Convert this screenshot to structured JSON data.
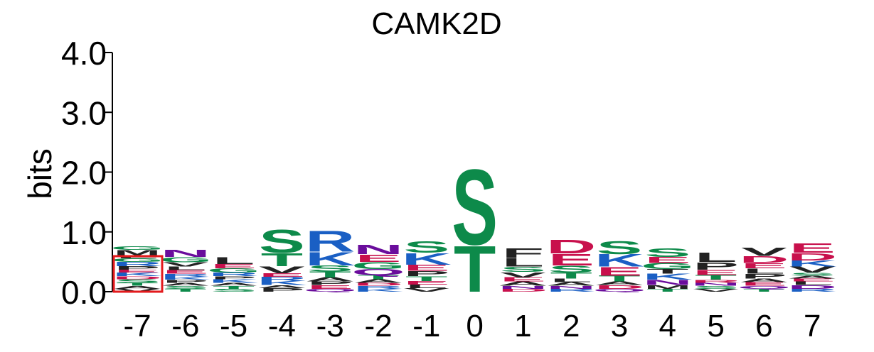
{
  "chart_data": {
    "type": "sequence_logo",
    "title": "CAMK2D",
    "ylabel": "bits",
    "ylim": [
      0,
      4
    ],
    "yticks": [
      "0.0",
      "1.0",
      "2.0",
      "3.0",
      "4.0"
    ],
    "ytick_values": [
      0,
      1,
      2,
      3,
      4
    ],
    "positions": [
      "-7",
      "-6",
      "-5",
      "-4",
      "-3",
      "-2",
      "-1",
      "0",
      "1",
      "2",
      "3",
      "4",
      "5",
      "6",
      "7"
    ],
    "highlighted_position": "-7",
    "highlight_color": "#e31a1c",
    "colors": {
      "green": "#0d8a4a",
      "blue": "#1a5fc4",
      "red": "#c8104c",
      "purple": "#6a0d9c",
      "black": "#222222"
    },
    "columns": [
      {
        "pos": "-7",
        "stack": [
          [
            "V",
            0.05,
            "black"
          ],
          [
            "A",
            0.05,
            "black"
          ],
          [
            "T",
            0.05,
            "green"
          ],
          [
            "S",
            0.06,
            "green"
          ],
          [
            "D",
            0.05,
            "red"
          ],
          [
            "K",
            0.06,
            "blue"
          ],
          [
            "E",
            0.05,
            "red"
          ],
          [
            "P",
            0.06,
            "black"
          ],
          [
            "R",
            0.07,
            "blue"
          ],
          [
            "G",
            0.06,
            "green"
          ],
          [
            "L",
            0.05,
            "black"
          ],
          [
            "M",
            0.09,
            "black"
          ],
          [
            "G",
            0.06,
            "green"
          ]
        ]
      },
      {
        "pos": "-6",
        "stack": [
          [
            "T",
            0.05,
            "green"
          ],
          [
            "S",
            0.05,
            "green"
          ],
          [
            "A",
            0.05,
            "black"
          ],
          [
            "P",
            0.05,
            "black"
          ],
          [
            "K",
            0.05,
            "blue"
          ],
          [
            "R",
            0.05,
            "blue"
          ],
          [
            "E",
            0.06,
            "red"
          ],
          [
            "L",
            0.06,
            "black"
          ],
          [
            "V",
            0.07,
            "black"
          ],
          [
            "G",
            0.09,
            "green"
          ],
          [
            "N",
            0.13,
            "purple"
          ]
        ]
      },
      {
        "pos": "-5",
        "stack": [
          [
            "S",
            0.05,
            "green"
          ],
          [
            "T",
            0.05,
            "green"
          ],
          [
            "A",
            0.05,
            "black"
          ],
          [
            "K",
            0.06,
            "blue"
          ],
          [
            "P",
            0.05,
            "black"
          ],
          [
            "R",
            0.06,
            "blue"
          ],
          [
            "G",
            0.07,
            "green"
          ],
          [
            "E",
            0.07,
            "red"
          ],
          [
            "L",
            0.12,
            "black"
          ]
        ]
      },
      {
        "pos": "-4",
        "stack": [
          [
            "P",
            0.06,
            "black"
          ],
          [
            "A",
            0.05,
            "black"
          ],
          [
            "K",
            0.07,
            "blue"
          ],
          [
            "R",
            0.07,
            "blue"
          ],
          [
            "E",
            0.06,
            "red"
          ],
          [
            "V",
            0.12,
            "black"
          ],
          [
            "T",
            0.22,
            "green"
          ],
          [
            "S",
            0.4,
            "green"
          ]
        ]
      },
      {
        "pos": "-3",
        "stack": [
          [
            "Q",
            0.05,
            "purple"
          ],
          [
            "E",
            0.06,
            "red"
          ],
          [
            "P",
            0.06,
            "black"
          ],
          [
            "A",
            0.07,
            "black"
          ],
          [
            "T",
            0.1,
            "green"
          ],
          [
            "S",
            0.1,
            "green"
          ],
          [
            "K",
            0.23,
            "blue"
          ],
          [
            "R",
            0.36,
            "blue"
          ]
        ]
      },
      {
        "pos": "-2",
        "stack": [
          [
            "K",
            0.05,
            "blue"
          ],
          [
            "R",
            0.05,
            "blue"
          ],
          [
            "D",
            0.05,
            "red"
          ],
          [
            "A",
            0.06,
            "black"
          ],
          [
            "T",
            0.07,
            "green"
          ],
          [
            "Q",
            0.1,
            "purple"
          ],
          [
            "G",
            0.12,
            "green"
          ],
          [
            "E",
            0.13,
            "red"
          ],
          [
            "N",
            0.16,
            "purple"
          ]
        ]
      },
      {
        "pos": "-1",
        "stack": [
          [
            "V",
            0.06,
            "black"
          ],
          [
            "L",
            0.06,
            "black"
          ],
          [
            "E",
            0.06,
            "red"
          ],
          [
            "T",
            0.08,
            "green"
          ],
          [
            "P",
            0.09,
            "black"
          ],
          [
            "E",
            0.1,
            "red"
          ],
          [
            "K",
            0.2,
            "blue"
          ],
          [
            "S",
            0.2,
            "green"
          ]
        ]
      },
      {
        "pos": "0",
        "stack": [
          [
            "T",
            0.79,
            "green"
          ],
          [
            "S",
            1.3,
            "green"
          ]
        ]
      },
      {
        "pos": "1",
        "stack": [
          [
            "D",
            0.05,
            "red"
          ],
          [
            "N",
            0.05,
            "purple"
          ],
          [
            "A",
            0.07,
            "black"
          ],
          [
            "E",
            0.07,
            "red"
          ],
          [
            "V",
            0.09,
            "black"
          ],
          [
            "S",
            0.09,
            "green"
          ],
          [
            "L",
            0.15,
            "black"
          ],
          [
            "F",
            0.16,
            "black"
          ]
        ]
      },
      {
        "pos": "2",
        "stack": [
          [
            "R",
            0.05,
            "blue"
          ],
          [
            "N",
            0.05,
            "purple"
          ],
          [
            "A",
            0.06,
            "black"
          ],
          [
            "L",
            0.06,
            "black"
          ],
          [
            "T",
            0.1,
            "green"
          ],
          [
            "S",
            0.12,
            "green"
          ],
          [
            "E",
            0.2,
            "red"
          ],
          [
            "D",
            0.24,
            "red"
          ]
        ]
      },
      {
        "pos": "3",
        "stack": [
          [
            "Q",
            0.05,
            "purple"
          ],
          [
            "D",
            0.06,
            "red"
          ],
          [
            "A",
            0.06,
            "black"
          ],
          [
            "T",
            0.1,
            "green"
          ],
          [
            "E",
            0.15,
            "red"
          ],
          [
            "K",
            0.21,
            "blue"
          ],
          [
            "S",
            0.22,
            "green"
          ]
        ]
      },
      {
        "pos": "4",
        "stack": [
          [
            "T",
            0.05,
            "green"
          ],
          [
            "M",
            0.06,
            "black"
          ],
          [
            "N",
            0.09,
            "purple"
          ],
          [
            "K",
            0.1,
            "blue"
          ],
          [
            "T",
            0.08,
            "black"
          ],
          [
            "G",
            0.1,
            "green"
          ],
          [
            "E",
            0.1,
            "red"
          ],
          [
            "S",
            0.15,
            "green"
          ]
        ]
      },
      {
        "pos": "5",
        "stack": [
          [
            "V",
            0.05,
            "black"
          ],
          [
            "S",
            0.05,
            "green"
          ],
          [
            "N",
            0.05,
            "purple"
          ],
          [
            "R",
            0.05,
            "red"
          ],
          [
            "T",
            0.08,
            "green"
          ],
          [
            "E",
            0.09,
            "red"
          ],
          [
            "P",
            0.13,
            "black"
          ],
          [
            "L",
            0.16,
            "black"
          ]
        ]
      },
      {
        "pos": "6",
        "stack": [
          [
            "T",
            0.05,
            "green"
          ],
          [
            "Q",
            0.05,
            "purple"
          ],
          [
            "E",
            0.06,
            "red"
          ],
          [
            "A",
            0.06,
            "black"
          ],
          [
            "P",
            0.08,
            "black"
          ],
          [
            "L",
            0.09,
            "black"
          ],
          [
            "E",
            0.09,
            "red"
          ],
          [
            "D",
            0.12,
            "red"
          ],
          [
            "V",
            0.14,
            "black"
          ]
        ]
      },
      {
        "pos": "7",
        "stack": [
          [
            "R",
            0.05,
            "blue"
          ],
          [
            "D",
            0.06,
            "purple"
          ],
          [
            "L",
            0.06,
            "black"
          ],
          [
            "E",
            0.05,
            "red"
          ],
          [
            "A",
            0.05,
            "black"
          ],
          [
            "S",
            0.05,
            "green"
          ],
          [
            "V",
            0.1,
            "black"
          ],
          [
            "K",
            0.1,
            "blue"
          ],
          [
            "D",
            0.13,
            "red"
          ],
          [
            "E",
            0.16,
            "red"
          ]
        ]
      }
    ]
  }
}
